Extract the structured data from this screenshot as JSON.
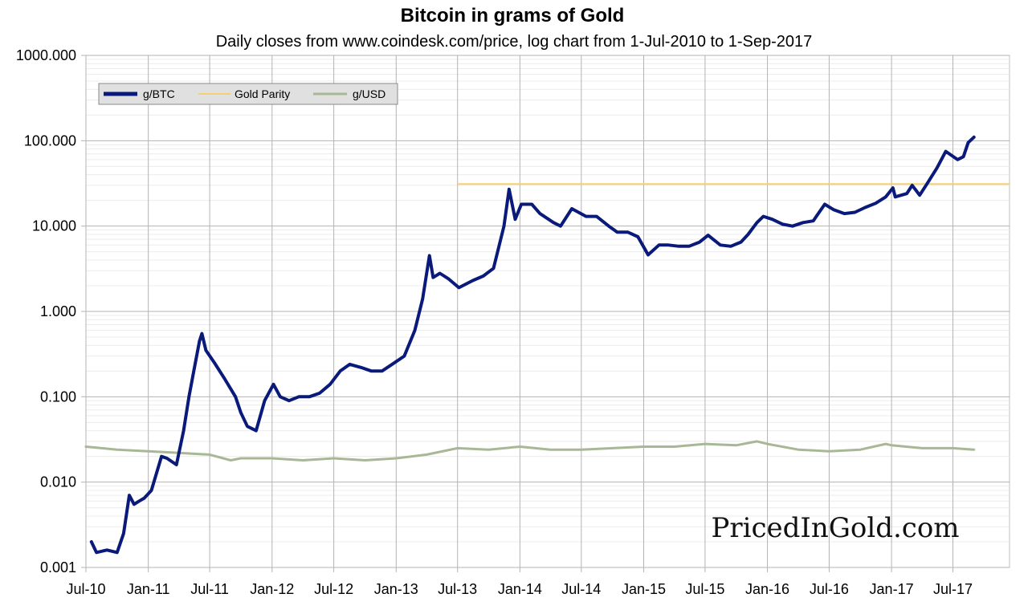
{
  "chart_data": {
    "type": "line",
    "title": "Bitcoin in grams of Gold",
    "subtitle": "Daily closes from www.coindesk.com/price, log chart from 1-Jul-2010 to 1-Sep-2017",
    "xlabel": "",
    "ylabel": "",
    "yscale": "log",
    "ylim": [
      0.001,
      1000
    ],
    "xlim": [
      "2010-07-01",
      "2017-12-15"
    ],
    "y_ticks": [
      "0.001",
      "0.010",
      "0.100",
      "1.000",
      "10.000",
      "100.000",
      "1000.000"
    ],
    "x_ticks": [
      {
        "date": "2010-07-01",
        "label": "Jul-10"
      },
      {
        "date": "2011-01-01",
        "label": "Jan-11"
      },
      {
        "date": "2011-07-01",
        "label": "Jul-11"
      },
      {
        "date": "2012-01-01",
        "label": "Jan-12"
      },
      {
        "date": "2012-07-01",
        "label": "Jul-12"
      },
      {
        "date": "2013-01-01",
        "label": "Jan-13"
      },
      {
        "date": "2013-07-01",
        "label": "Jul-13"
      },
      {
        "date": "2014-01-01",
        "label": "Jan-14"
      },
      {
        "date": "2014-07-01",
        "label": "Jul-14"
      },
      {
        "date": "2015-01-01",
        "label": "Jan-15"
      },
      {
        "date": "2015-07-01",
        "label": "Jul-15"
      },
      {
        "date": "2016-01-01",
        "label": "Jan-16"
      },
      {
        "date": "2016-07-01",
        "label": "Jul-16"
      },
      {
        "date": "2017-01-01",
        "label": "Jan-17"
      },
      {
        "date": "2017-07-01",
        "label": "Jul-17"
      }
    ],
    "grid": true,
    "legend_position": "top-left",
    "watermark": "PricedInGold.com",
    "series": [
      {
        "name": "g/BTC",
        "color": "#0a1a7a",
        "x": [
          "2010-07-17",
          "2010-08-01",
          "2010-09-01",
          "2010-10-01",
          "2010-10-20",
          "2010-11-06",
          "2010-11-20",
          "2010-12-05",
          "2010-12-20",
          "2011-01-10",
          "2011-02-09",
          "2011-02-25",
          "2011-03-25",
          "2011-04-15",
          "2011-05-01",
          "2011-05-15",
          "2011-06-01",
          "2011-06-08",
          "2011-06-20",
          "2011-07-15",
          "2011-08-15",
          "2011-09-15",
          "2011-10-01",
          "2011-10-20",
          "2011-11-15",
          "2011-12-10",
          "2012-01-05",
          "2012-01-25",
          "2012-02-20",
          "2012-03-20",
          "2012-04-20",
          "2012-05-20",
          "2012-06-20",
          "2012-07-20",
          "2012-08-17",
          "2012-09-20",
          "2012-10-20",
          "2012-11-20",
          "2012-12-20",
          "2013-01-25",
          "2013-02-25",
          "2013-03-20",
          "2013-04-09",
          "2013-04-20",
          "2013-05-10",
          "2013-06-05",
          "2013-07-05",
          "2013-08-15",
          "2013-09-15",
          "2013-10-15",
          "2013-11-15",
          "2013-11-30",
          "2013-12-18",
          "2014-01-05",
          "2014-02-05",
          "2014-03-01",
          "2014-04-10",
          "2014-05-01",
          "2014-06-03",
          "2014-07-15",
          "2014-08-15",
          "2014-09-20",
          "2014-10-15",
          "2014-11-15",
          "2014-12-15",
          "2015-01-14",
          "2015-02-15",
          "2015-03-15",
          "2015-04-15",
          "2015-05-15",
          "2015-06-15",
          "2015-07-10",
          "2015-08-15",
          "2015-09-15",
          "2015-10-15",
          "2015-11-05",
          "2015-12-01",
          "2015-12-20",
          "2016-01-15",
          "2016-02-15",
          "2016-03-15",
          "2016-04-15",
          "2016-05-15",
          "2016-06-18",
          "2016-07-15",
          "2016-08-15",
          "2016-09-15",
          "2016-10-15",
          "2016-11-15",
          "2016-12-15",
          "2017-01-05",
          "2017-01-12",
          "2017-02-15",
          "2017-03-03",
          "2017-03-25",
          "2017-04-15",
          "2017-05-15",
          "2017-06-10",
          "2017-07-15",
          "2017-08-01",
          "2017-08-15",
          "2017-09-01"
        ],
        "values": [
          0.002,
          0.0015,
          0.0016,
          0.0015,
          0.0025,
          0.007,
          0.0055,
          0.006,
          0.0065,
          0.008,
          0.02,
          0.019,
          0.016,
          0.04,
          0.1,
          0.2,
          0.45,
          0.55,
          0.35,
          0.25,
          0.16,
          0.1,
          0.065,
          0.045,
          0.04,
          0.09,
          0.14,
          0.1,
          0.09,
          0.1,
          0.1,
          0.11,
          0.14,
          0.2,
          0.24,
          0.22,
          0.2,
          0.2,
          0.24,
          0.3,
          0.6,
          1.4,
          4.5,
          2.5,
          2.8,
          2.4,
          1.9,
          2.3,
          2.6,
          3.2,
          10,
          27,
          12,
          18,
          18,
          14,
          11,
          10,
          16,
          13,
          13,
          10,
          8.5,
          8.5,
          7.5,
          4.6,
          6,
          6,
          5.8,
          5.8,
          6.5,
          7.8,
          6,
          5.8,
          6.5,
          8,
          11,
          13,
          12,
          10.5,
          10,
          11,
          11.5,
          18,
          15.5,
          14,
          14.5,
          16.5,
          18.5,
          22,
          28,
          22,
          24,
          30,
          23,
          31,
          48,
          75,
          60,
          65,
          95,
          110
        ]
      },
      {
        "name": "Gold Parity",
        "color": "#f5d070",
        "x": [
          "2013-07-01",
          "2017-12-15"
        ],
        "values": [
          31.1,
          31.1
        ]
      },
      {
        "name": "g/USD",
        "color": "#a8b896",
        "x": [
          "2010-07-01",
          "2010-10-01",
          "2011-01-01",
          "2011-04-01",
          "2011-07-01",
          "2011-09-01",
          "2011-10-01",
          "2012-01-01",
          "2012-04-01",
          "2012-07-01",
          "2012-10-01",
          "2013-01-01",
          "2013-04-01",
          "2013-07-01",
          "2013-10-01",
          "2014-01-01",
          "2014-04-01",
          "2014-07-01",
          "2014-10-01",
          "2015-01-01",
          "2015-04-01",
          "2015-07-01",
          "2015-10-01",
          "2015-12-01",
          "2016-01-01",
          "2016-04-01",
          "2016-07-01",
          "2016-10-01",
          "2016-12-15",
          "2017-01-01",
          "2017-04-01",
          "2017-07-01",
          "2017-09-01"
        ],
        "values": [
          0.026,
          0.024,
          0.023,
          0.022,
          0.021,
          0.018,
          0.019,
          0.019,
          0.018,
          0.019,
          0.018,
          0.019,
          0.021,
          0.025,
          0.024,
          0.026,
          0.024,
          0.024,
          0.025,
          0.026,
          0.026,
          0.028,
          0.027,
          0.03,
          0.028,
          0.024,
          0.023,
          0.024,
          0.028,
          0.027,
          0.025,
          0.025,
          0.024
        ]
      }
    ]
  }
}
